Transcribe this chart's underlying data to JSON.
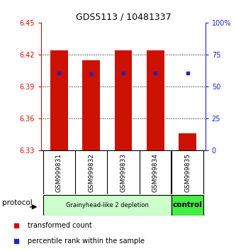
{
  "title": "GDS5113 / 10481337",
  "samples": [
    "GSM999831",
    "GSM999832",
    "GSM999833",
    "GSM999834",
    "GSM999835"
  ],
  "bar_tops": [
    6.424,
    6.415,
    6.424,
    6.424,
    6.346
  ],
  "bar_bottom": 6.33,
  "blue_dot_values": [
    6.403,
    6.402,
    6.403,
    6.403,
    6.403
  ],
  "ylim": [
    6.33,
    6.45
  ],
  "yticks_left": [
    6.33,
    6.36,
    6.39,
    6.42,
    6.45
  ],
  "yticks_right": [
    0,
    25,
    50,
    75,
    100
  ],
  "ytick_right_labels": [
    "0",
    "25",
    "50",
    "75",
    "100%"
  ],
  "bar_color": "#cc1100",
  "dot_color": "#2222cc",
  "group1_label": "Grainyhead-like 2 depletion",
  "group2_label": "control",
  "group1_color": "#ccffcc",
  "group2_color": "#44ee44",
  "protocol_label": "protocol",
  "legend_red_label": "transformed count",
  "legend_blue_label": "percentile rank within the sample",
  "bar_width": 0.55,
  "bg_color": "#ffffff",
  "tick_color_left": "#cc1100",
  "tick_color_right": "#2222cc",
  "label_area_color": "#cccccc",
  "n_group1": 4,
  "n_group2": 1
}
